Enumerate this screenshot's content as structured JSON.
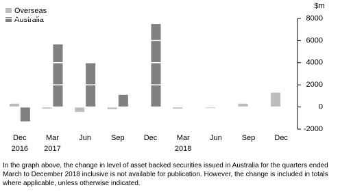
{
  "chart_data": {
    "type": "bar",
    "y_label": "$m",
    "categories": [
      "Dec",
      "Mar",
      "Jun",
      "Sep",
      "Dec",
      "Mar",
      "Jun",
      "Sep",
      "Dec"
    ],
    "year_labels": [
      "2016",
      "2017",
      null,
      null,
      null,
      "2018",
      null,
      null,
      null
    ],
    "series": [
      {
        "name": "Overseas",
        "color": "#bdbdbd",
        "values": [
          300,
          -150,
          -450,
          -200,
          0,
          -150,
          -100,
          300,
          1300
        ]
      },
      {
        "name": "Australia",
        "color": "#808080",
        "values": [
          -1300,
          5650,
          4050,
          1100,
          7500,
          null,
          null,
          null,
          null
        ]
      }
    ],
    "ylim": [
      -2000,
      8000
    ],
    "yticks": [
      -2000,
      0,
      2000,
      4000,
      6000,
      8000
    ],
    "note": "In the graph above, the change in level of asset backed securities issued in Australia for the quarters ended March to December 2018 inclusive is not available for publication. However, the change is included in totals where applicable, unless otherwise indicated."
  }
}
